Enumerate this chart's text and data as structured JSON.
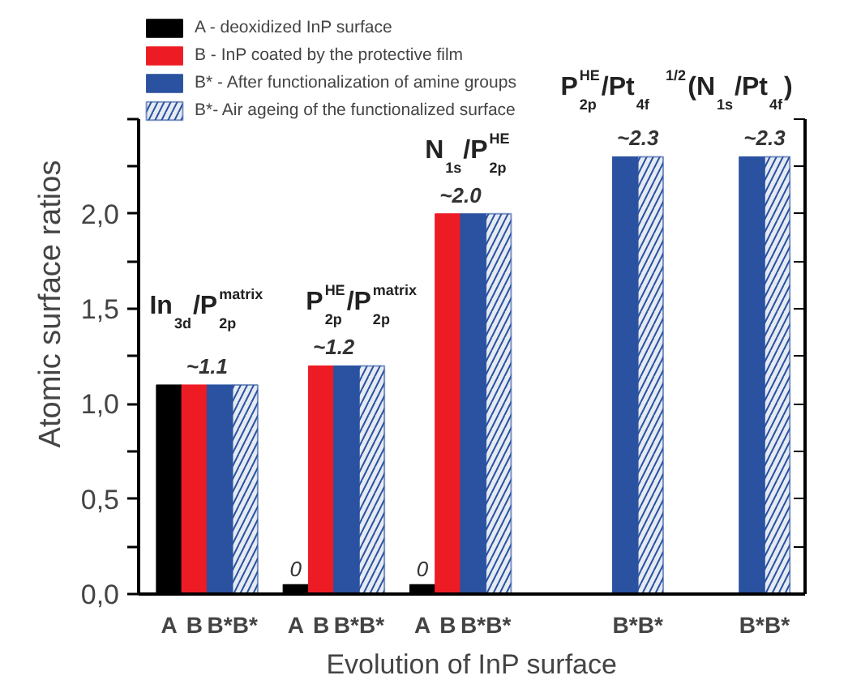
{
  "chart_data": {
    "type": "bar",
    "xlabel": "Evolution of InP surface",
    "ylabel": "Atomic surface ratios",
    "categories": [
      "A",
      "B",
      "B*",
      "B*",
      null,
      "A",
      "B",
      "B*",
      "B*",
      null,
      "A",
      "B",
      "B*",
      "B*",
      null,
      null,
      null,
      null,
      "B*",
      "B*",
      null,
      null,
      null,
      "B*",
      "B*"
    ],
    "series": [
      {
        "name": "A - deoxidized InP surface",
        "color": "#000000",
        "values": [
          1.1,
          null,
          null,
          null,
          null,
          0.05,
          null,
          null,
          null,
          null,
          0.05,
          null,
          null,
          null,
          null,
          null,
          null,
          null,
          null,
          null,
          null,
          null,
          null,
          null,
          null
        ]
      },
      {
        "name": "B - InP coated by the protective film",
        "color": "#ed1c24",
        "values": [
          null,
          1.1,
          null,
          null,
          null,
          null,
          1.2,
          null,
          null,
          null,
          null,
          2.0,
          null,
          null,
          null,
          null,
          null,
          null,
          null,
          null,
          null,
          null,
          null,
          null,
          null
        ],
        "value_labels": [
          null,
          "~1.1",
          null,
          null,
          null,
          null,
          "~1.2",
          null,
          null,
          null,
          null,
          "~2.0",
          null,
          null,
          null,
          null,
          null,
          null,
          null,
          null,
          null,
          null,
          null,
          null,
          null
        ]
      },
      {
        "name": "B* - After functionalization of amine groups",
        "color": "#2a52a0",
        "values": [
          null,
          null,
          1.1,
          null,
          null,
          null,
          null,
          1.2,
          null,
          null,
          null,
          null,
          2.0,
          null,
          null,
          null,
          null,
          null,
          2.3,
          null,
          null,
          null,
          null,
          2.3,
          null
        ],
        "value_labels": [
          null,
          null,
          null,
          null,
          null,
          null,
          null,
          null,
          null,
          null,
          null,
          null,
          null,
          null,
          null,
          null,
          null,
          null,
          "~2.3",
          null,
          null,
          null,
          null,
          "~2.3",
          null
        ]
      },
      {
        "name": "B*- Air ageing of the functionalized surface",
        "color": "#2a52a0",
        "values": [
          null,
          null,
          null,
          1.1,
          null,
          null,
          null,
          null,
          1.2,
          null,
          null,
          null,
          null,
          2.0,
          null,
          null,
          null,
          null,
          null,
          2.3,
          null,
          null,
          null,
          null,
          2.3
        ]
      }
    ],
    "ylim": [
      0,
      2.5
    ],
    "yticks": [
      {
        "value": 0,
        "label": "0,0"
      },
      {
        "value": 0.25,
        "label": null
      },
      {
        "value": 0.5,
        "label": "0,5"
      },
      {
        "value": 0.75,
        "label": null
      },
      {
        "value": 1.0,
        "label": "1,0"
      },
      {
        "value": 1.25,
        "label": null
      },
      {
        "value": 1.5,
        "label": "1,5"
      },
      {
        "value": 1.75,
        "label": null
      },
      {
        "value": 2.0,
        "label": "2,0"
      },
      {
        "value": 2.25,
        "label": null
      },
      {
        "value": 2.5,
        "label": null
      }
    ],
    "annotations": [
      "In$_{3d}$/P$^{matrix}$$_{2p}$",
      "P$^{HE}$$_{2p}$/P$^{matrix}$$_{2p}$",
      "N$_{1s}$/P$^{HE}$$_{2p}$",
      "P$^{HE}$$_{2p}$/Pt$_{4f}$",
      "$^{1/2}$(N$_{1s}$/Pt$_{4f}$)",
      "0",
      "0"
    ],
    "legend": "top left",
    "grid": false
  }
}
